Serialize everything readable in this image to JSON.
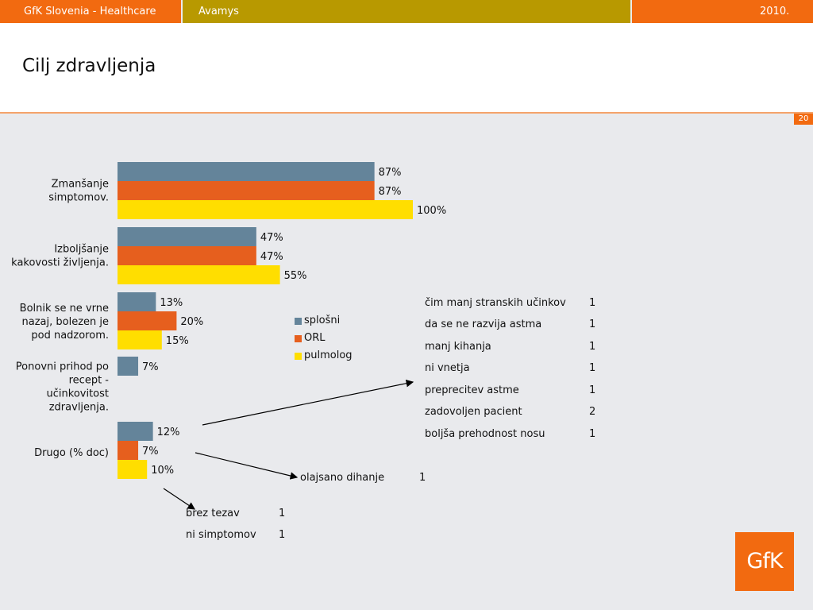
{
  "header": {
    "left": "GfK Slovenia - Healthcare",
    "center": "Avamys",
    "right": "2010.",
    "page_number": "20"
  },
  "title": "Cilj zdravljenja",
  "logo_text": "GfK",
  "colors": {
    "header_orange": "#f26a10",
    "header_gold": "#b89900",
    "series": [
      "#64849a",
      "#e65f1e",
      "#ffde00"
    ]
  },
  "chart_data": {
    "type": "bar",
    "orientation": "horizontal",
    "categories": [
      [
        "Zmanšanje",
        "simptomov."
      ],
      [
        "Izboljšanje",
        "kakovosti življenja."
      ],
      [
        "Bolnik se ne vrne",
        "nazaj, bolezen je",
        "pod nadzorom."
      ],
      [
        "Ponovni prihod po",
        "recept -",
        "učinkovitost",
        "zdravljenja."
      ],
      [
        "Drugo (% doc)"
      ]
    ],
    "series": [
      {
        "name": "splošni",
        "values": [
          87,
          47,
          13,
          7,
          12
        ]
      },
      {
        "name": "ORL",
        "values": [
          87,
          47,
          20,
          null,
          7
        ]
      },
      {
        "name": "pulmolog",
        "values": [
          100,
          55,
          15,
          null,
          10
        ]
      }
    ],
    "value_suffix": "%",
    "xlim": [
      0,
      100
    ],
    "legend_position": "right"
  },
  "notes": {
    "right_table": [
      {
        "label": "čim manj stranskih učinkov",
        "count": "1"
      },
      {
        "label": "da se ne razvija astma",
        "count": "1"
      },
      {
        "label": "manj kihanja",
        "count": "1"
      },
      {
        "label": "ni vnetja",
        "count": "1"
      },
      {
        "label": "preprecitev astme",
        "count": "1"
      },
      {
        "label": "zadovoljen pacient",
        "count": "2"
      },
      {
        "label": "boljša prehodnost nosu",
        "count": "1"
      }
    ],
    "mid_item": {
      "label": "olajsano dihanje",
      "count": "1"
    },
    "bottom_table": [
      {
        "label": "brez tezav",
        "count": "1"
      },
      {
        "label": "ni simptomov",
        "count": "1"
      }
    ]
  }
}
